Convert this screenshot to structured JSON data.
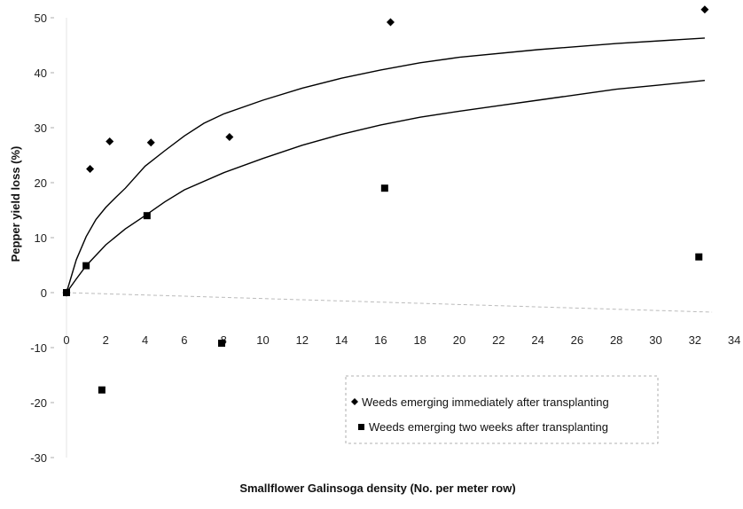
{
  "chart_data": {
    "type": "scatter",
    "title": "",
    "xlabel": "Smallflower Galinsoga density (No. per meter row)",
    "ylabel": "Pepper yield loss (%)",
    "xlim": [
      0,
      34
    ],
    "ylim": [
      -30,
      50
    ],
    "x_ticks": [
      0,
      2,
      4,
      6,
      8,
      10,
      12,
      14,
      16,
      18,
      20,
      22,
      24,
      26,
      28,
      30,
      32,
      34
    ],
    "y_ticks": [
      -30,
      -20,
      -10,
      0,
      10,
      20,
      30,
      40,
      50
    ],
    "grid": false,
    "legend_position": "bottom-right",
    "series": [
      {
        "name": "Weeds emerging immediately after transplanting",
        "marker": "diamond",
        "color": "#000000",
        "points": [
          [
            0,
            0
          ],
          [
            1.2,
            22.5
          ],
          [
            2.2,
            27.5
          ],
          [
            4.3,
            27.3
          ],
          [
            8.3,
            28.3
          ],
          [
            16.5,
            49.2
          ],
          [
            32.5,
            51.5
          ]
        ],
        "fit_curve": [
          [
            0,
            0
          ],
          [
            0.5,
            6
          ],
          [
            1,
            10.2
          ],
          [
            1.5,
            13.3
          ],
          [
            2,
            15.5
          ],
          [
            2.5,
            17.3
          ],
          [
            3,
            19
          ],
          [
            4,
            23
          ],
          [
            5,
            25.8
          ],
          [
            6,
            28.5
          ],
          [
            7,
            30.8
          ],
          [
            8,
            32.5
          ],
          [
            10,
            35
          ],
          [
            12,
            37.2
          ],
          [
            14,
            39
          ],
          [
            16,
            40.5
          ],
          [
            18,
            41.8
          ],
          [
            20,
            42.8
          ],
          [
            24,
            44.2
          ],
          [
            28,
            45.3
          ],
          [
            32.5,
            46.3
          ]
        ]
      },
      {
        "name": "Weeds emerging two weeks after transplanting",
        "marker": "square",
        "color": "#000000",
        "points": [
          [
            0,
            0
          ],
          [
            1,
            4.9
          ],
          [
            1.8,
            -17.7
          ],
          [
            4.1,
            14
          ],
          [
            7.9,
            -9.2
          ],
          [
            16.2,
            19
          ],
          [
            32.2,
            6.5
          ]
        ],
        "fit_curve": [
          [
            0,
            0
          ],
          [
            0.5,
            2.5
          ],
          [
            1,
            4.9
          ],
          [
            2,
            8.7
          ],
          [
            3,
            11.6
          ],
          [
            4,
            14
          ],
          [
            5,
            16.5
          ],
          [
            6,
            18.7
          ],
          [
            8,
            21.8
          ],
          [
            10,
            24.4
          ],
          [
            12,
            26.8
          ],
          [
            14,
            28.8
          ],
          [
            16,
            30.5
          ],
          [
            18,
            31.9
          ],
          [
            20,
            33
          ],
          [
            22,
            34
          ],
          [
            24,
            35
          ],
          [
            26,
            36
          ],
          [
            28,
            37
          ],
          [
            30,
            37.7
          ],
          [
            32.5,
            38.6
          ]
        ]
      }
    ]
  }
}
